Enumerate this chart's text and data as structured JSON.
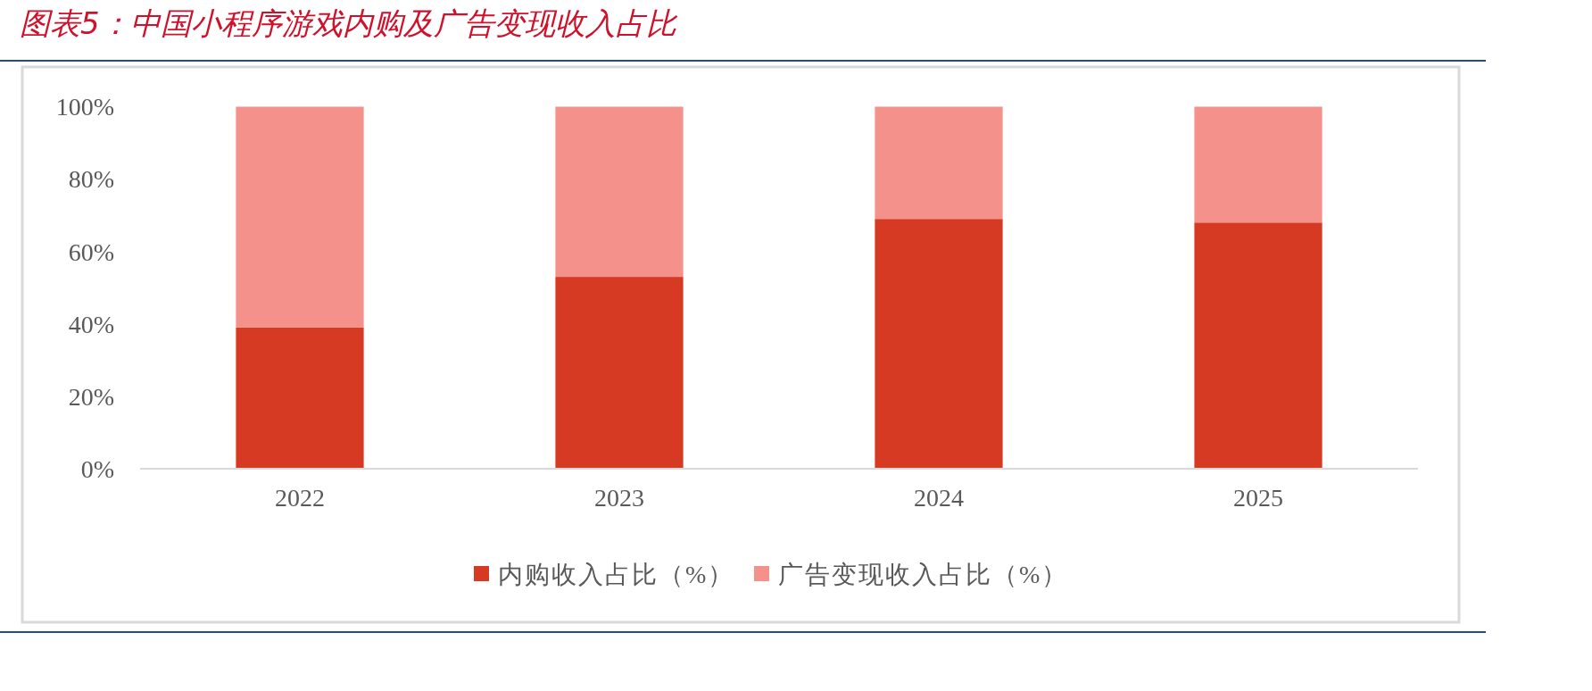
{
  "chart_data": {
    "type": "bar",
    "title": "图表5：中国小程序游戏内购及广告变现收入占比",
    "categories": [
      "2022",
      "2023",
      "2024",
      "2025"
    ],
    "stacked": true,
    "series": [
      {
        "name": "内购收入占比（%）",
        "color": "#d63a22",
        "values": [
          39,
          53,
          69,
          68
        ]
      },
      {
        "name": "广告变现收入占比（%）",
        "color": "#f4918a",
        "values": [
          61,
          47,
          31,
          32
        ]
      }
    ],
    "ylim": [
      0,
      100
    ],
    "yticks": [
      {
        "value": 0,
        "label": "0%"
      },
      {
        "value": 20,
        "label": "20%"
      },
      {
        "value": 40,
        "label": "40%"
      },
      {
        "value": 60,
        "label": "60%"
      },
      {
        "value": 80,
        "label": "80%"
      },
      {
        "value": 100,
        "label": "100%"
      }
    ],
    "grid": false,
    "legend": "bottom"
  }
}
